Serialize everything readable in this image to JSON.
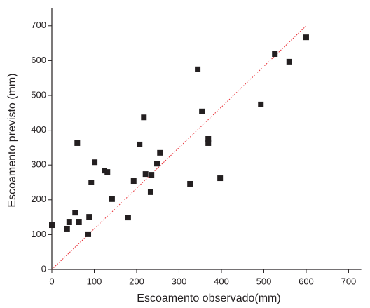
{
  "chart_data": {
    "type": "scatter",
    "xlabel": "Escoamento observado(mm)",
    "ylabel": "Escoamento previsto (mm)",
    "x": [
      0,
      36,
      41,
      55,
      64,
      60,
      86,
      88,
      93,
      101,
      124,
      131,
      142,
      180,
      193,
      207,
      217,
      221,
      233,
      235,
      248,
      255,
      326,
      344,
      354,
      369,
      369,
      397,
      493,
      526,
      560,
      600
    ],
    "y": [
      127,
      117,
      137,
      163,
      137,
      363,
      101,
      151,
      250,
      308,
      284,
      280,
      202,
      149,
      254,
      359,
      437,
      274,
      222,
      272,
      304,
      335,
      246,
      575,
      454,
      375,
      363,
      262,
      474,
      619,
      597,
      667
    ],
    "color": "#231f20",
    "reference_line": {
      "x": [
        0,
        600
      ],
      "y": [
        0,
        700
      ],
      "color": "#e8262d"
    },
    "xlim": [
      0,
      730
    ],
    "ylim": [
      0,
      750
    ],
    "xticks": [
      0,
      100,
      200,
      300,
      400,
      500,
      600,
      700
    ],
    "yticks": [
      0,
      100,
      200,
      300,
      400,
      500,
      600,
      700
    ]
  }
}
